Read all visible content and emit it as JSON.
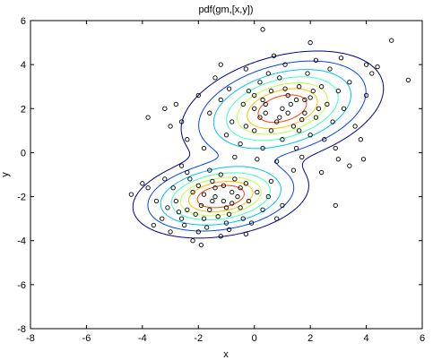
{
  "chart_data": {
    "type": "scatter",
    "title": "pdf(gm,[x,y])",
    "xlabel": "x",
    "ylabel": "y",
    "xlim": [
      -8,
      6
    ],
    "ylim": [
      -8,
      6
    ],
    "xticks": [
      -8,
      -6,
      -4,
      -2,
      0,
      2,
      4,
      6
    ],
    "yticks": [
      -8,
      -6,
      -4,
      -2,
      0,
      2,
      4,
      6
    ],
    "grid": false,
    "legend": "none",
    "components": [
      {
        "mean": [
          1.0,
          2.0
        ],
        "sd": [
          1.45,
          1.05
        ],
        "rho": 0.35,
        "weight": 0.6
      },
      {
        "mean": [
          -1.2,
          -2.0
        ],
        "sd": [
          1.25,
          0.75
        ],
        "rho": 0.25,
        "weight": 0.4
      }
    ],
    "contour_levels": [
      0.003,
      0.008,
      0.016,
      0.026,
      0.036,
      0.046,
      0.056
    ],
    "contour_colors": [
      "#00008f",
      "#0040ff",
      "#00bfff",
      "#40ffbf",
      "#bfff40",
      "#ffbf00",
      "#ff4000"
    ],
    "marker": "open-circle",
    "series": [
      {
        "points": [
          [
            -2.4,
            -2.6
          ],
          [
            -1.5,
            -2.2
          ],
          [
            -0.8,
            -1.8
          ],
          [
            -1.0,
            -3.2
          ],
          [
            -2.0,
            -1.5
          ],
          [
            -0.5,
            -2.5
          ],
          [
            -1.8,
            -3.0
          ],
          [
            -2.8,
            -2.2
          ],
          [
            -1.2,
            -1.0
          ],
          [
            -0.3,
            -1.4
          ],
          [
            -1.6,
            -2.6
          ],
          [
            -2.2,
            -1.8
          ],
          [
            -0.9,
            -2.8
          ],
          [
            -1.4,
            -1.6
          ],
          [
            -2.6,
            -3.0
          ],
          [
            -0.6,
            -2.0
          ],
          [
            -1.9,
            -2.4
          ],
          [
            -1.1,
            -2.2
          ],
          [
            -0.4,
            -3.0
          ],
          [
            -2.3,
            -1.2
          ],
          [
            -3.1,
            -2.5
          ],
          [
            -1.7,
            -3.4
          ],
          [
            -0.2,
            -2.2
          ],
          [
            0.1,
            -1.8
          ],
          [
            -2.9,
            -1.6
          ],
          [
            -1.3,
            -2.9
          ],
          [
            -0.7,
            -1.2
          ],
          [
            -2.1,
            -2.8
          ],
          [
            -1.5,
            -1.3
          ],
          [
            -0.9,
            -3.5
          ],
          [
            -3.3,
            -3.0
          ],
          [
            -2.5,
            -3.3
          ],
          [
            -1.0,
            -2.5
          ],
          [
            -0.5,
            -1.6
          ],
          [
            -1.8,
            -1.9
          ],
          [
            -2.7,
            -2.7
          ],
          [
            0.3,
            -2.6
          ],
          [
            -1.2,
            -3.8
          ],
          [
            -3.5,
            -2.2
          ],
          [
            -0.1,
            -3.2
          ],
          [
            -1.6,
            -0.8
          ],
          [
            -2.4,
            -0.9
          ],
          [
            0.5,
            -2.0
          ],
          [
            -3.0,
            -3.6
          ],
          [
            -1.4,
            -2.0
          ],
          [
            -0.8,
            -2.3
          ],
          [
            -2.0,
            -3.6
          ],
          [
            -1.1,
            -1.5
          ],
          [
            -3.8,
            -1.6
          ],
          [
            -4.4,
            -1.9
          ],
          [
            -4.0,
            -1.4
          ],
          [
            -3.2,
            -1.2
          ],
          [
            -2.6,
            -0.6
          ],
          [
            -1.9,
            -4.2
          ],
          [
            0.8,
            -3.0
          ],
          [
            1.0,
            -2.4
          ],
          [
            -0.3,
            -3.7
          ],
          [
            -2.2,
            -4.0
          ],
          [
            -3.6,
            -3.3
          ],
          [
            0.6,
            -1.3
          ],
          [
            1.0,
            2.0
          ],
          [
            0.2,
            1.6
          ],
          [
            1.8,
            2.4
          ],
          [
            0.6,
            2.8
          ],
          [
            1.4,
            1.2
          ],
          [
            -0.4,
            2.2
          ],
          [
            2.2,
            1.6
          ],
          [
            0.8,
            1.4
          ],
          [
            1.2,
            2.6
          ],
          [
            0.0,
            1.0
          ],
          [
            2.6,
            2.2
          ],
          [
            1.6,
            3.0
          ],
          [
            -0.8,
            1.4
          ],
          [
            0.4,
            2.2
          ],
          [
            2.0,
            0.8
          ],
          [
            1.0,
            0.6
          ],
          [
            3.0,
            2.8
          ],
          [
            -0.2,
            2.8
          ],
          [
            1.8,
            1.8
          ],
          [
            0.6,
            1.0
          ],
          [
            2.4,
            3.0
          ],
          [
            1.2,
            1.8
          ],
          [
            -1.2,
            2.4
          ],
          [
            0.2,
            3.2
          ],
          [
            2.8,
            1.4
          ],
          [
            1.5,
            0.2
          ],
          [
            0.0,
            2.0
          ],
          [
            3.2,
            2.0
          ],
          [
            -1.0,
            0.8
          ],
          [
            0.9,
            3.4
          ],
          [
            2.1,
            2.8
          ],
          [
            1.3,
            2.2
          ],
          [
            -0.5,
            0.4
          ],
          [
            2.5,
            0.6
          ],
          [
            0.5,
            3.6
          ],
          [
            3.4,
            3.2
          ],
          [
            -1.6,
            1.8
          ],
          [
            1.7,
            -0.2
          ],
          [
            0.3,
            0.2
          ],
          [
            2.9,
            0.2
          ],
          [
            1.1,
            4.0
          ],
          [
            -0.3,
            3.8
          ],
          [
            3.6,
            1.2
          ],
          [
            -2.0,
            2.6
          ],
          [
            2.2,
            4.2
          ],
          [
            0.8,
            -0.4
          ],
          [
            4.0,
            2.6
          ],
          [
            -1.4,
            3.4
          ],
          [
            1.9,
            3.6
          ],
          [
            0.1,
            -0.3
          ],
          [
            3.0,
            -0.3
          ],
          [
            -0.9,
            2.9
          ],
          [
            2.7,
            3.8
          ],
          [
            1.4,
            -0.8
          ],
          [
            -1.8,
            0.2
          ],
          [
            3.8,
            0.6
          ],
          [
            -2.6,
            1.4
          ],
          [
            4.2,
            3.6
          ],
          [
            0.7,
            4.4
          ],
          [
            2.4,
            -0.9
          ],
          [
            -0.7,
            -0.2
          ],
          [
            1.6,
            1.0
          ],
          [
            0.4,
            1.8
          ],
          [
            1.1,
            2.9
          ],
          [
            2.3,
            2.0
          ],
          [
            0.0,
            2.6
          ],
          [
            1.7,
            1.5
          ],
          [
            -0.3,
            1.2
          ],
          [
            2.0,
            2.5
          ],
          [
            0.9,
            1.6
          ],
          [
            1.5,
            2.4
          ],
          [
            0.3,
            2.4
          ],
          [
            -3.2,
            2.0
          ],
          [
            -3.8,
            1.6
          ],
          [
            -2.8,
            2.2
          ],
          [
            -2.4,
            0.6
          ],
          [
            4.4,
            3.9
          ],
          [
            4.9,
            5.1
          ],
          [
            5.5,
            3.3
          ],
          [
            3.1,
            4.3
          ],
          [
            3.4,
            -0.6
          ],
          [
            3.9,
            -0.3
          ],
          [
            2.9,
            -2.4
          ],
          [
            -3.0,
            1.2
          ],
          [
            -1.2,
            4.0
          ],
          [
            2.0,
            5.0
          ],
          [
            0.3,
            5.6
          ],
          [
            4.0,
            4.0
          ]
        ]
      }
    ]
  }
}
